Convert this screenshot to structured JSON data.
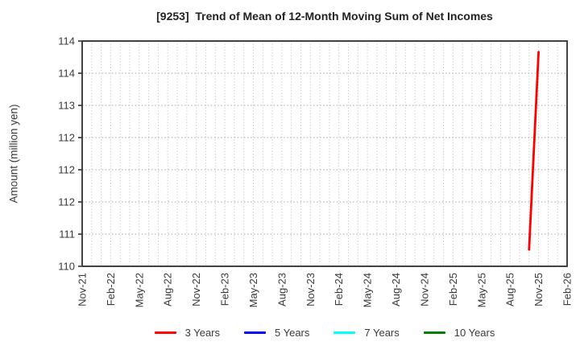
{
  "title": "[9253]  Trend of Mean of 12-Month Moving Sum of Net Incomes",
  "chart_data": {
    "type": "line",
    "title": "[9253]  Trend of Mean of 12-Month Moving Sum of Net Incomes",
    "xlabel": "",
    "ylabel": "Amount (million yen)",
    "x_tick_labels": [
      "Nov-21",
      "Feb-22",
      "May-22",
      "Aug-22",
      "Nov-22",
      "Feb-23",
      "May-23",
      "Aug-23",
      "Nov-23",
      "Feb-24",
      "May-24",
      "Aug-24",
      "Nov-24",
      "Feb-25",
      "May-25",
      "Aug-25",
      "Nov-25",
      "Feb-26"
    ],
    "x_months_total": 51,
    "ylim": [
      110.5,
      114.0
    ],
    "y_ticks": [
      {
        "value": 114.0,
        "label": "114"
      },
      {
        "value": 113.5,
        "label": "114"
      },
      {
        "value": 113.0,
        "label": "113"
      },
      {
        "value": 112.5,
        "label": "112"
      },
      {
        "value": 112.0,
        "label": "112"
      },
      {
        "value": 111.5,
        "label": "112"
      },
      {
        "value": 111.0,
        "label": "111"
      },
      {
        "value": 110.5,
        "label": "110"
      }
    ],
    "grid": true,
    "legend_position": "bottom",
    "series": [
      {
        "name": "3 Years",
        "color": "#ff0000",
        "points": [
          {
            "x": "Oct-25",
            "month_index": 47,
            "value": 110.76
          },
          {
            "x": "Nov-25",
            "month_index": 48,
            "value": 113.83
          }
        ]
      },
      {
        "name": "5 Years",
        "color": "#0000ff",
        "points": []
      },
      {
        "name": "7 Years",
        "color": "#00ffff",
        "points": []
      },
      {
        "name": "10 Years",
        "color": "#008000",
        "points": []
      }
    ],
    "colors": {
      "grid": "#bbbbbb",
      "axis_border": "#2e2e2e",
      "tick_text": "#3a3a3a",
      "title_text": "#222222"
    }
  }
}
